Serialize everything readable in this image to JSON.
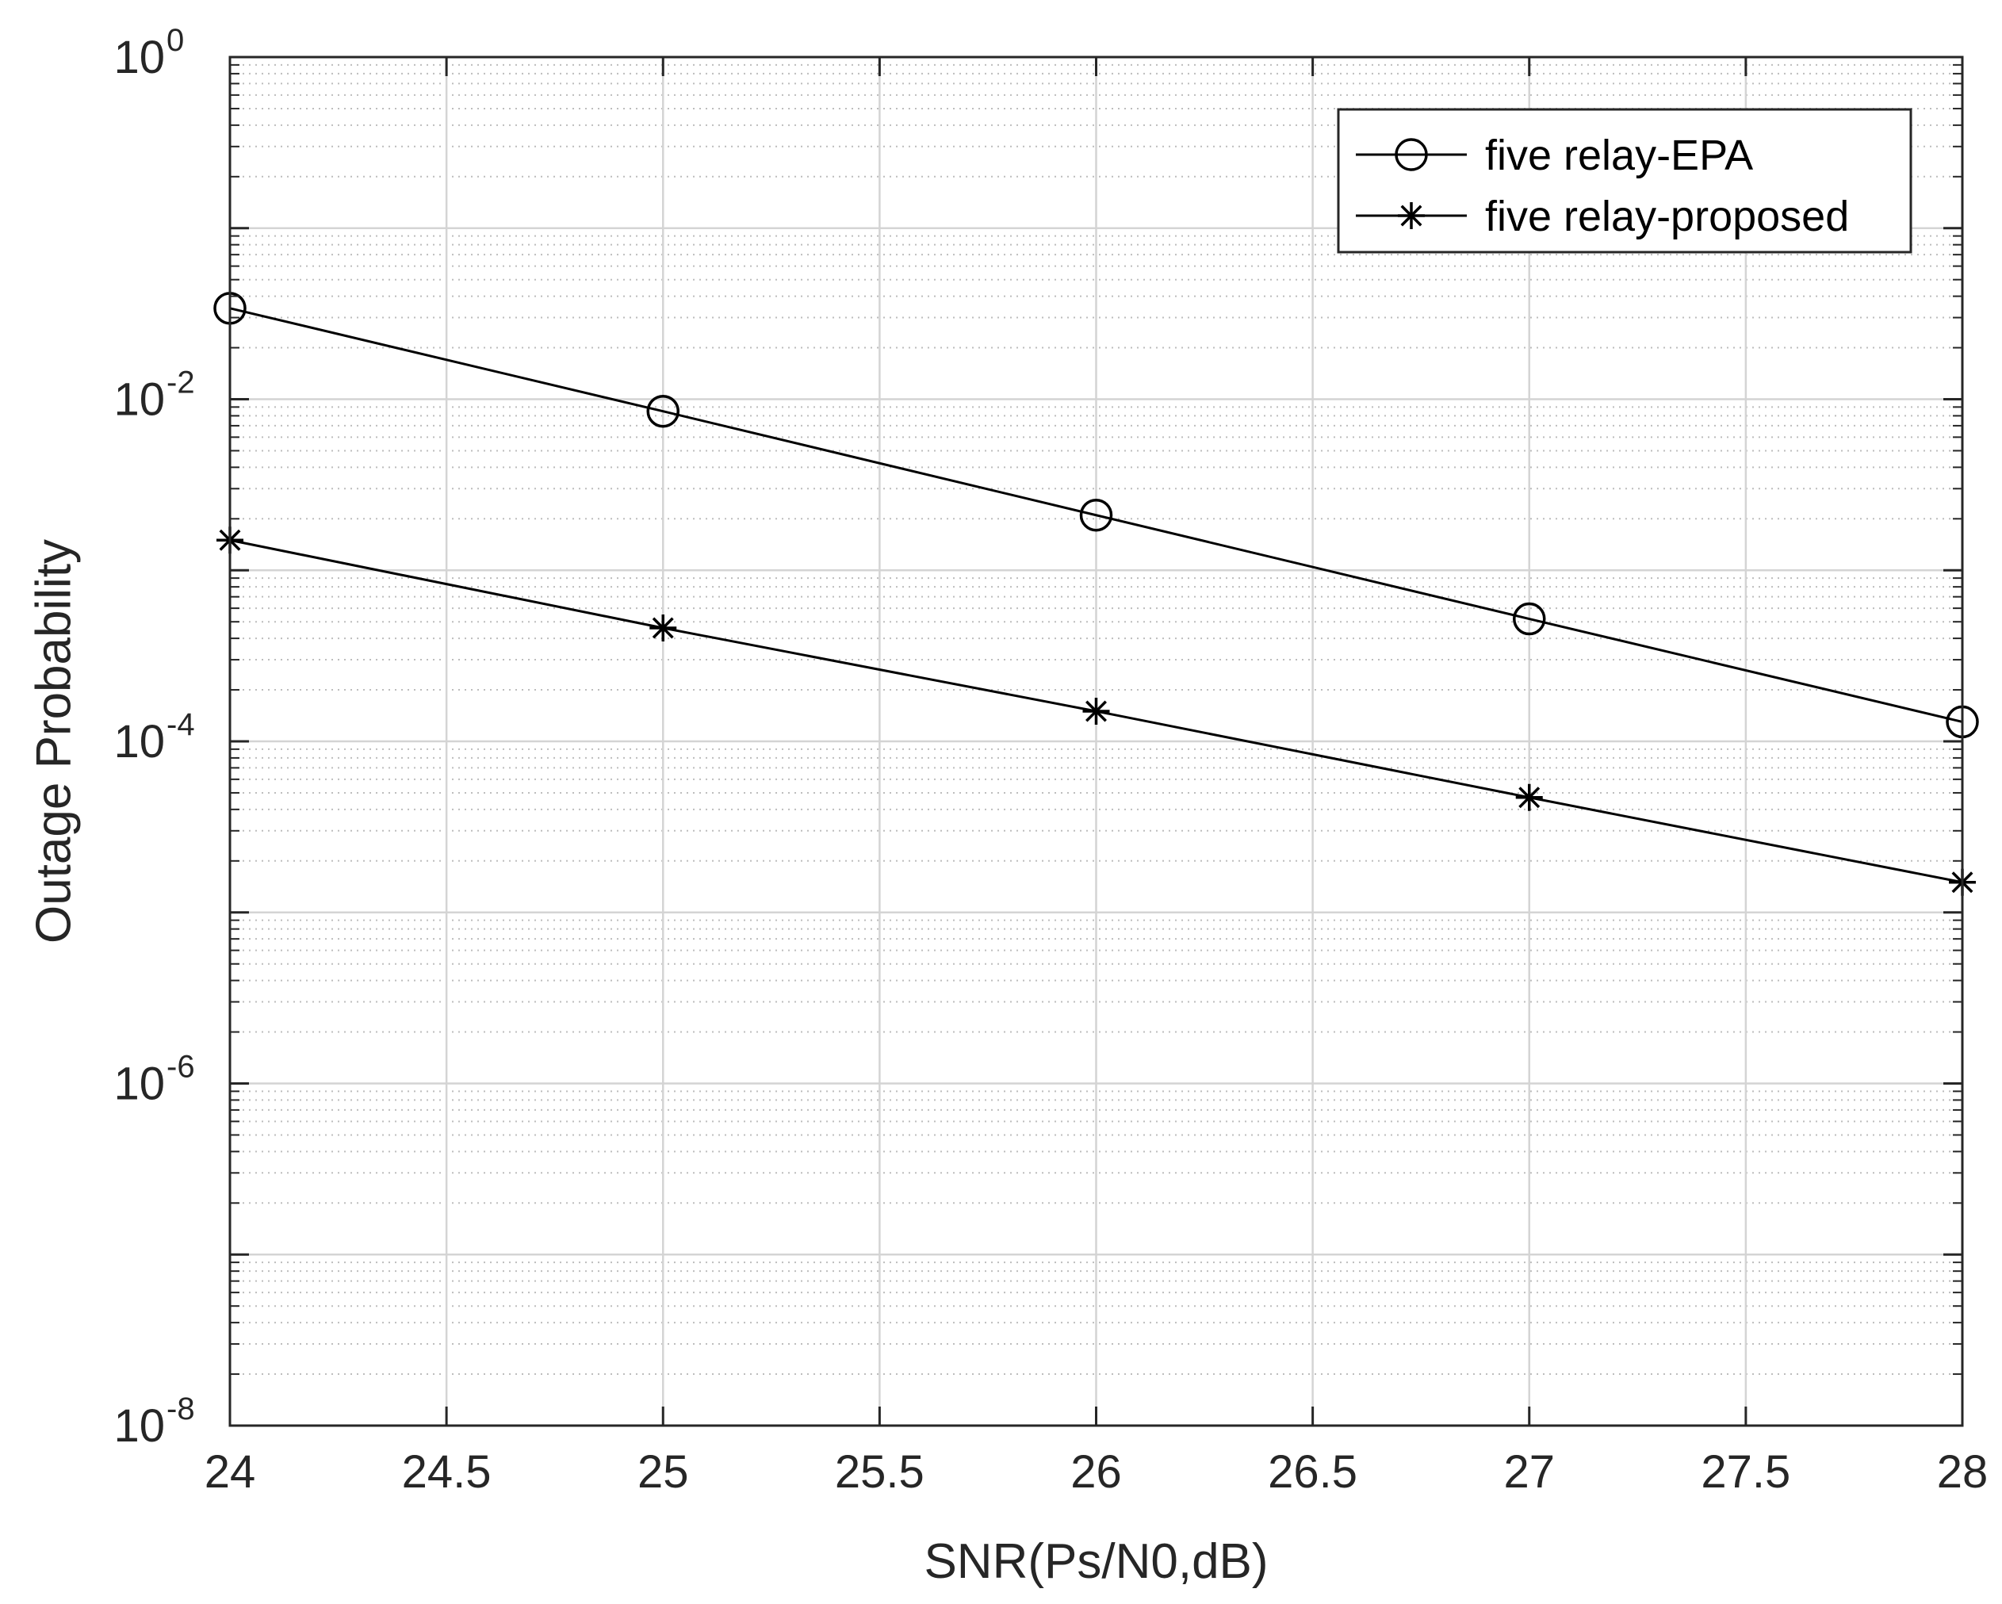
{
  "chart_data": {
    "type": "line",
    "title": "",
    "xlabel": "SNR(Ps/N0,dB)",
    "ylabel": "Outage Probability",
    "xlim": [
      24,
      28
    ],
    "ylim": [
      1e-08,
      1
    ],
    "yscale": "log",
    "grid": true,
    "minor_grid": true,
    "legend_position": "top-right",
    "x_ticks": [
      {
        "value": 24,
        "label": "24"
      },
      {
        "value": 24.5,
        "label": "24.5"
      },
      {
        "value": 25,
        "label": "25"
      },
      {
        "value": 25.5,
        "label": "25.5"
      },
      {
        "value": 26,
        "label": "26"
      },
      {
        "value": 26.5,
        "label": "26.5"
      },
      {
        "value": 27,
        "label": "27"
      },
      {
        "value": 27.5,
        "label": "27.5"
      },
      {
        "value": 28,
        "label": "28"
      }
    ],
    "y_ticks": [
      {
        "value": 1e-08,
        "base": "10",
        "exp": "-8"
      },
      {
        "value": 1e-06,
        "base": "10",
        "exp": "-6"
      },
      {
        "value": 0.0001,
        "base": "10",
        "exp": "-4"
      },
      {
        "value": 0.01,
        "base": "10",
        "exp": "-2"
      },
      {
        "value": 1,
        "base": "10",
        "exp": "0"
      }
    ],
    "series": [
      {
        "name": "five relay-EPA",
        "marker": "circle",
        "color": "#000000",
        "x": [
          24,
          25,
          26,
          27,
          28
        ],
        "y": [
          0.034,
          0.0085,
          0.0021,
          0.00052,
          0.00013
        ]
      },
      {
        "name": "five relay-proposed",
        "marker": "asterisk",
        "color": "#000000",
        "x": [
          24,
          25,
          26,
          27,
          28
        ],
        "y": [
          0.0015,
          0.00046,
          0.00015,
          4.7e-05,
          1.5e-05
        ]
      }
    ]
  }
}
